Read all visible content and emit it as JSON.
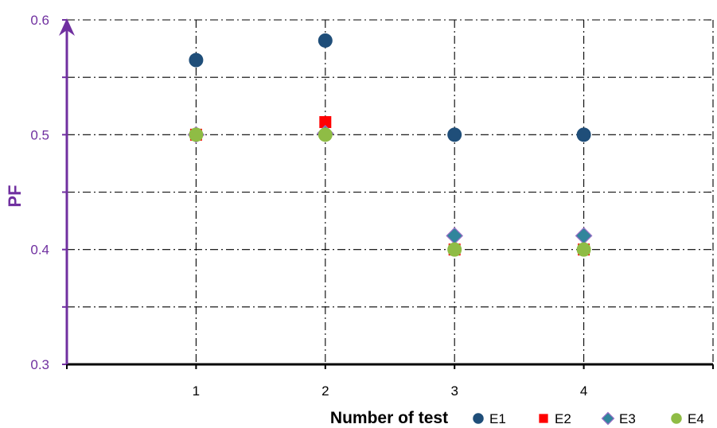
{
  "chart_data": {
    "type": "scatter",
    "title": "",
    "xlabel": "Number of test",
    "ylabel": "PF",
    "x_ticks": [
      "1",
      "2",
      "3",
      "4"
    ],
    "y_ticks": [
      "0.3",
      "0.4",
      "0.5",
      "0.6"
    ],
    "xlim": [
      0,
      5
    ],
    "ylim": [
      0.3,
      0.6
    ],
    "grid": true,
    "legend_position": "bottom-right",
    "series": [
      {
        "name": "E1",
        "marker": "circle",
        "color": "#1f4e79",
        "x": [
          1,
          2,
          3,
          4
        ],
        "y": [
          0.565,
          0.582,
          0.5,
          0.5
        ]
      },
      {
        "name": "E2",
        "marker": "square",
        "color": "#ff0000",
        "x": [
          1,
          2,
          3,
          4
        ],
        "y": [
          0.5,
          0.511,
          0.4,
          0.4
        ]
      },
      {
        "name": "E3",
        "marker": "diamond",
        "color": "#31859c",
        "x": [
          1,
          2,
          3,
          4
        ],
        "y": [
          0.5,
          0.501,
          0.412,
          0.412
        ]
      },
      {
        "name": "E4",
        "marker": "circle",
        "color": "#8fbc45",
        "x": [
          1,
          2,
          3,
          4
        ],
        "y": [
          0.5,
          0.5,
          0.4,
          0.4
        ]
      }
    ],
    "colors": {
      "y_axis": "#7030a0",
      "x_axis": "#000000",
      "grid": "#000000"
    }
  }
}
